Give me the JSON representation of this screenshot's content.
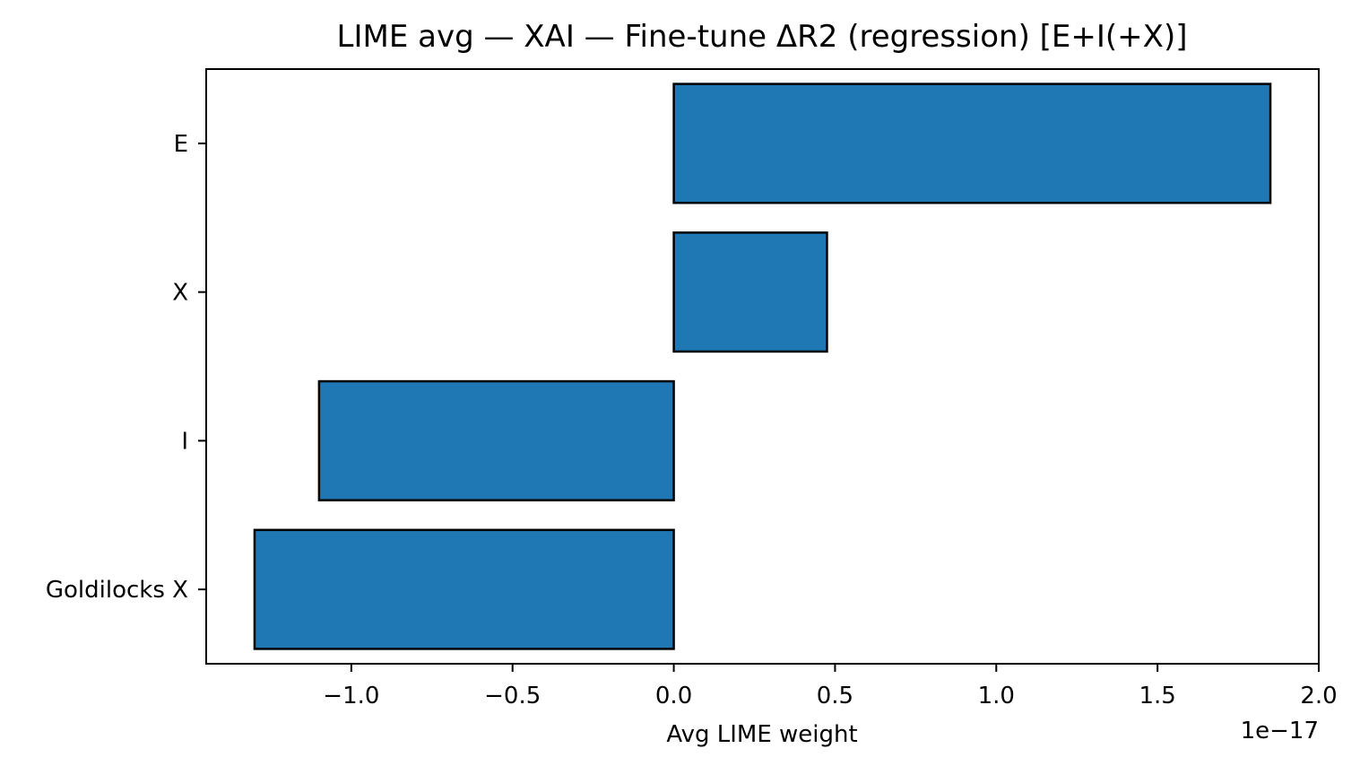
{
  "chart_data": {
    "type": "bar",
    "orientation": "horizontal",
    "title": "LIME avg — XAI — Fine-tune ΔR2  (regression) [E+I(+X)]",
    "xlabel": "Avg LIME weight",
    "ylabel": "",
    "x_offset_label": "1e−17",
    "x_scale_factor": 1e-17,
    "categories": [
      "E",
      "X",
      "I",
      "Goldilocks X"
    ],
    "values": [
      1.85e-17,
      4.75e-18,
      -1.1e-17,
      -1.3e-17
    ],
    "xlim": [
      -1.45e-17,
      2e-17
    ],
    "xticks": [
      -1.0,
      -0.5,
      0.0,
      0.5,
      1.0,
      1.5,
      2.0
    ],
    "xtick_labels": [
      "−1.0",
      "−0.5",
      "0.0",
      "0.5",
      "1.0",
      "1.5",
      "2.0"
    ],
    "grid": false,
    "legend": "none",
    "colors": {
      "bar_fill": "#1f77b4",
      "bar_edge": "#000000",
      "axes": "#000000",
      "background": "#ffffff"
    }
  }
}
